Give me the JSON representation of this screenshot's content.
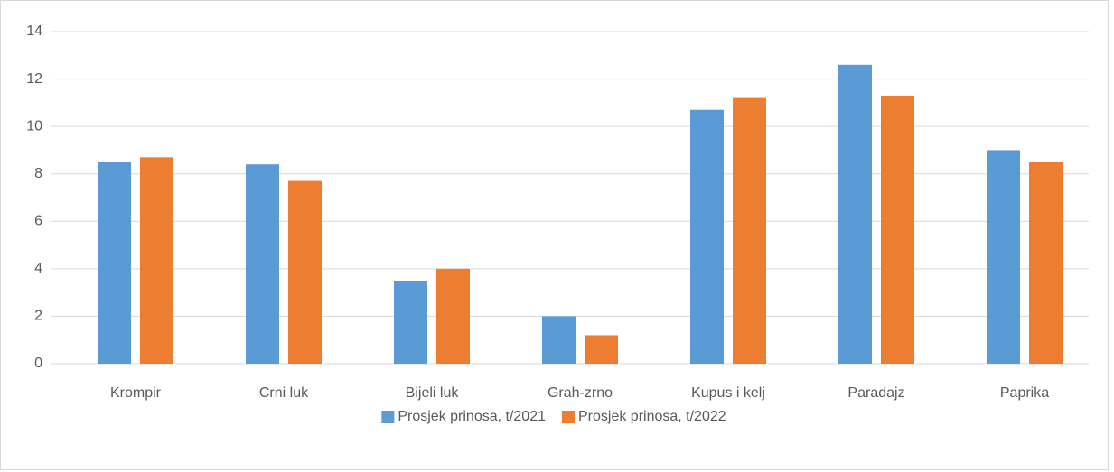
{
  "chart_data": {
    "type": "bar",
    "categories": [
      "Krompir",
      "Crni luk",
      "Bijeli luk",
      "Grah-zrno",
      "Kupus i kelj",
      "Paradajz",
      "Paprika"
    ],
    "series": [
      {
        "name": "Prosjek prinosa, t/2021",
        "color": "#5b9bd5",
        "values": [
          8.5,
          8.4,
          3.5,
          2.0,
          10.7,
          12.6,
          9.0
        ]
      },
      {
        "name": "Prosjek prinosa, t/2022",
        "color": "#ed7d31",
        "values": [
          8.7,
          7.7,
          4.0,
          1.2,
          11.2,
          11.3,
          8.5
        ]
      }
    ],
    "ylim": [
      0,
      14
    ],
    "yticks": [
      0,
      2,
      4,
      6,
      8,
      10,
      12,
      14
    ],
    "grid": true,
    "legend": "bottom"
  }
}
